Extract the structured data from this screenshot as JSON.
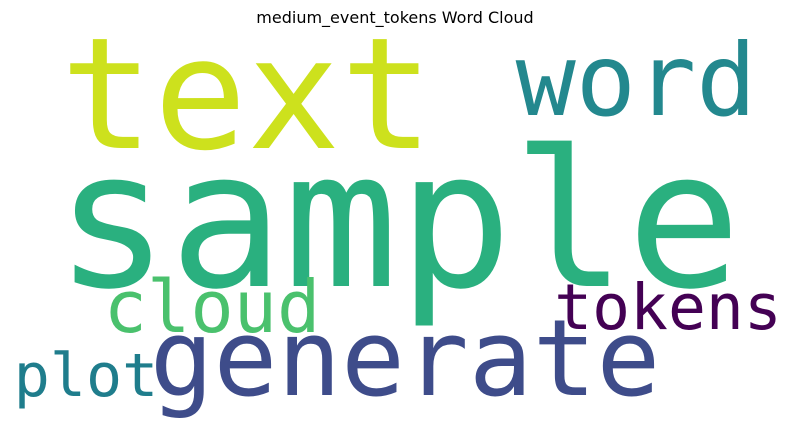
{
  "chart_data": {
    "type": "wordcloud",
    "title": "medium_event_tokens Word Cloud",
    "background": "#ffffff",
    "words": [
      {
        "text": "sample",
        "rank": 1,
        "color": "#2ab07f"
      },
      {
        "text": "text",
        "rank": 2,
        "color": "#cde11d"
      },
      {
        "text": "generate",
        "rank": 3,
        "color": "#3e4c8a"
      },
      {
        "text": "word",
        "rank": 4,
        "color": "#23888e"
      },
      {
        "text": "cloud",
        "rank": 5,
        "color": "#4ac16d"
      },
      {
        "text": "tokens",
        "rank": 6,
        "color": "#440154"
      },
      {
        "text": "plot",
        "rank": 7,
        "color": "#1f7d8c"
      }
    ]
  }
}
